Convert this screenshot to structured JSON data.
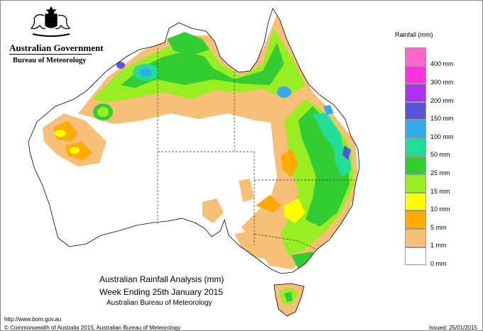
{
  "header": {
    "government": "Australian Government",
    "bureau": "Bureau of Meteorology"
  },
  "legend": {
    "title": "Rainfall (mm)",
    "items": [
      {
        "label": "",
        "color": "#ff66cc"
      },
      {
        "label": "400 mm",
        "color": "#ff33dd"
      },
      {
        "label": "300 mm",
        "color": "#aa33ee"
      },
      {
        "label": "200 mm",
        "color": "#5555dd"
      },
      {
        "label": "150 mm",
        "color": "#33aaee"
      },
      {
        "label": "100 mm",
        "color": "#22dd99"
      },
      {
        "label": "50 mm",
        "color": "#33cc33"
      },
      {
        "label": "25 mm",
        "color": "#99ee22"
      },
      {
        "label": "15 mm",
        "color": "#ffff00"
      },
      {
        "label": "10 mm",
        "color": "#ffaa00"
      },
      {
        "label": "5 mm",
        "color": "#f7bf77"
      },
      {
        "label": "1 mm",
        "color": "#ffffff"
      },
      {
        "label": "0 mm",
        "color": "#ffffff"
      }
    ]
  },
  "caption": {
    "line1": "Australian Rainfall Analysis (mm)",
    "line2": "Week Ending 25th January 2015",
    "line3": "Australian Bureau of Meteorology"
  },
  "footer": {
    "url": "http://www.bom.gov.au",
    "copyright": "© Commonwealth of Australia 2015, Australian Bureau of Meteorology",
    "issued": "Issued: 25/01/2015"
  }
}
